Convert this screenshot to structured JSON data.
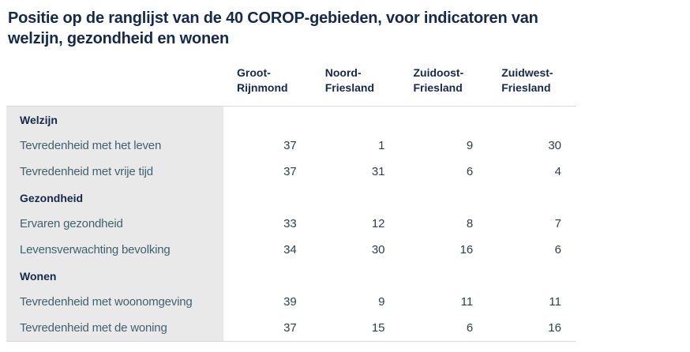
{
  "chart_data": {
    "type": "table",
    "title": "Positie op de ranglijst van de 40 COROP-gebieden, voor indicatoren van\nwelzijn, gezondheid en wonen",
    "columns": [
      "Groot-\nRijnmond",
      "Noord-\nFriesland",
      "Zuidoost-\nFriesland",
      "Zuidwest-\nFriesland"
    ],
    "rows": [
      {
        "kind": "section",
        "label": "Welzijn"
      },
      {
        "kind": "data",
        "label": "Tevredenheid met het leven",
        "values": [
          37,
          1,
          9,
          30
        ]
      },
      {
        "kind": "data",
        "label": "Tevredenheid met vrije tijd",
        "values": [
          37,
          31,
          6,
          4
        ]
      },
      {
        "kind": "section",
        "label": "Gezondheid"
      },
      {
        "kind": "data",
        "label": "Ervaren gezondheid",
        "values": [
          33,
          12,
          8,
          7
        ]
      },
      {
        "kind": "data",
        "label": "Levensverwachting bevolking",
        "values": [
          34,
          30,
          16,
          6
        ]
      },
      {
        "kind": "section",
        "label": "Wonen"
      },
      {
        "kind": "data",
        "label": "Tevredenheid met woonomgeving",
        "values": [
          39,
          9,
          11,
          11
        ]
      },
      {
        "kind": "data",
        "label": "Tevredenheid met de woning",
        "values": [
          37,
          15,
          6,
          16
        ]
      }
    ],
    "layout_hints": {
      "value_alignment": "right",
      "grid": "off",
      "row_groups": [
        "Welzijn",
        "Gezondheid",
        "Wonen"
      ]
    },
    "colors": {
      "heading_text": "#15294b",
      "row_label_text": "#40626e",
      "value_text": "#2e3e4a",
      "label_column_background": "#e9e9e9",
      "rule": "#d8d8d8"
    }
  }
}
